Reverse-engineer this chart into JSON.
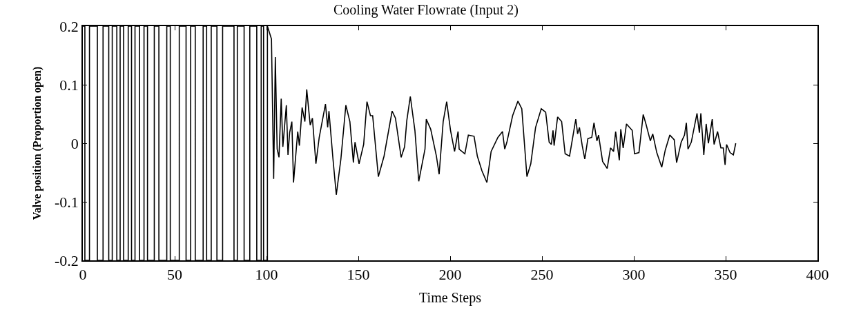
{
  "chart_data": {
    "type": "line",
    "title": "Cooling Water Flowrate (Input 2)",
    "xlabel": "Time Steps",
    "ylabel": "Valve position (Proportion open)",
    "xlim": [
      0,
      400
    ],
    "xticks": [
      0,
      50,
      100,
      150,
      200,
      250,
      300,
      350,
      400
    ],
    "ylim": [
      -0.2,
      0.2
    ],
    "yticks": [
      -0.2,
      -0.1,
      0,
      0.1,
      0.2
    ],
    "marker": "none",
    "line_style": "solid",
    "series": [
      {
        "color": "#000000",
        "x": [
          0,
          1.1,
          1.1,
          3.6,
          3.6,
          7.9,
          7.9,
          11,
          11,
          14.1,
          14.1,
          16,
          16,
          18.5,
          18.5,
          20.3,
          20.3,
          22.2,
          22.2,
          24.7,
          24.7,
          26.5,
          26.5,
          28.4,
          28.4,
          30.9,
          30.9,
          33.3,
          33.3,
          35.2,
          35.2,
          38.9,
          38.9,
          41.4,
          41.4,
          45.7,
          45.7,
          47.6,
          47.6,
          52.5,
          52.5,
          56.2,
          56.2,
          58.7,
          58.7,
          61.2,
          61.2,
          65.5,
          65.5,
          67.4,
          67.4,
          69.9,
          69.9,
          73,
          73,
          76.1,
          76.1,
          82.3,
          82.3,
          84.1,
          84.1,
          87.8,
          87.8,
          90.9,
          90.9,
          94.7,
          94.7,
          97.1,
          97.1,
          98.4,
          98.4,
          100.5,
          100.5,
          102.7,
          103.9,
          104.8,
          105.8,
          106.8,
          108.0,
          108.9,
          110.8,
          111.7,
          112.6,
          113.8,
          114.7,
          117.0,
          117.9,
          119.4,
          120.9,
          121.9,
          123.8,
          125.0,
          126.9,
          128.7,
          132.1,
          133.3,
          134.0,
          136.2,
          138.0,
          140.5,
          143.2,
          145.4,
          147.3,
          148.2,
          150.4,
          152.9,
          154.7,
          156.6,
          157.8,
          160.9,
          164.0,
          168.4,
          170.2,
          173.3,
          175.2,
          176.4,
          178.3,
          180.8,
          182.9,
          186.3,
          187.0,
          189.4,
          192.5,
          194.0,
          196.2,
          198.1,
          200.2,
          202.4,
          204.3,
          204.9,
          208.0,
          209.9,
          213.0,
          214.8,
          217.3,
          220.0,
          222.3,
          226.0,
          228.5,
          229.7,
          230.9,
          234.0,
          236.9,
          239.0,
          241.8,
          243.9,
          246.5,
          249.6,
          252.0,
          253.9,
          255.1,
          256.0,
          256.6,
          258.5,
          260.7,
          262.6,
          265.0,
          268.4,
          269.4,
          270.4,
          271.9,
          273.3,
          275.0,
          277.1,
          278.3,
          279.9,
          280.8,
          283.0,
          285.5,
          287.3,
          289.0,
          290.1,
          292.1,
          292.9,
          294.2,
          296.0,
          299.1,
          300.4,
          302.8,
          305.1,
          306.6,
          309.0,
          310.3,
          312.5,
          315.2,
          317.1,
          319.6,
          322.0,
          323.3,
          325.8,
          327.6,
          328.6,
          329.5,
          331.3,
          334.4,
          335.7,
          336.5,
          338.1,
          339.4,
          340.6,
          342.7,
          343.7,
          345.6,
          347.4,
          348.7,
          349.7,
          350.5,
          352.4,
          354.2,
          355.5
        ],
        "values": [
          0.2,
          0.2,
          -0.2,
          -0.2,
          0.2,
          0.2,
          -0.2,
          -0.2,
          0.2,
          0.2,
          -0.2,
          -0.2,
          0.2,
          0.2,
          -0.2,
          -0.2,
          0.2,
          0.2,
          -0.2,
          -0.2,
          0.2,
          0.2,
          -0.2,
          -0.2,
          0.2,
          0.2,
          -0.2,
          -0.2,
          0.2,
          0.2,
          -0.2,
          -0.2,
          0.2,
          0.2,
          -0.2,
          -0.2,
          0.2,
          0.2,
          -0.2,
          -0.2,
          0.2,
          0.2,
          -0.2,
          -0.2,
          0.2,
          0.2,
          -0.2,
          -0.2,
          0.2,
          0.2,
          -0.2,
          -0.2,
          0.2,
          0.2,
          -0.2,
          -0.2,
          0.2,
          0.2,
          -0.2,
          -0.2,
          0.2,
          0.2,
          -0.2,
          -0.2,
          0.2,
          0.2,
          -0.2,
          -0.2,
          0.2,
          0.2,
          -0.2,
          -0.2,
          0.2,
          0.178,
          -0.061,
          0.147,
          -0.01,
          -0.024,
          0.076,
          -0.006,
          0.065,
          -0.02,
          0.018,
          0.037,
          -0.067,
          0.02,
          -0.004,
          0.061,
          0.037,
          0.092,
          0.031,
          0.043,
          -0.035,
          0.01,
          0.067,
          0.027,
          0.055,
          -0.027,
          -0.088,
          -0.027,
          0.065,
          0.037,
          -0.033,
          0.002,
          -0.035,
          -0.002,
          0.071,
          0.047,
          0.047,
          -0.057,
          -0.022,
          0.055,
          0.043,
          -0.024,
          -0.006,
          0.039,
          0.08,
          0.022,
          -0.065,
          -0.01,
          0.041,
          0.024,
          -0.022,
          -0.053,
          0.037,
          0.071,
          0.022,
          -0.014,
          0.02,
          -0.01,
          -0.018,
          0.014,
          0.012,
          -0.022,
          -0.047,
          -0.067,
          -0.014,
          0.01,
          0.02,
          -0.01,
          0.002,
          0.047,
          0.072,
          0.059,
          -0.057,
          -0.035,
          0.027,
          0.059,
          0.053,
          0.002,
          -0.002,
          0.022,
          -0.004,
          0.045,
          0.037,
          -0.018,
          -0.022,
          0.041,
          0.016,
          0.027,
          -0.004,
          -0.027,
          0.008,
          0.01,
          0.035,
          0.004,
          0.014,
          -0.031,
          -0.043,
          -0.008,
          -0.014,
          0.02,
          -0.029,
          0.024,
          -0.008,
          0.033,
          0.022,
          -0.018,
          -0.016,
          0.049,
          0.033,
          0.004,
          0.016,
          -0.016,
          -0.041,
          -0.012,
          0.014,
          0.006,
          -0.033,
          0.002,
          0.014,
          0.035,
          -0.01,
          0.002,
          0.051,
          0.018,
          0.051,
          -0.02,
          0.033,
          0.0,
          0.041,
          -0.002,
          0.02,
          -0.008,
          -0.008,
          -0.037,
          -0.002,
          -0.016,
          -0.02,
          0.0
        ]
      }
    ]
  }
}
